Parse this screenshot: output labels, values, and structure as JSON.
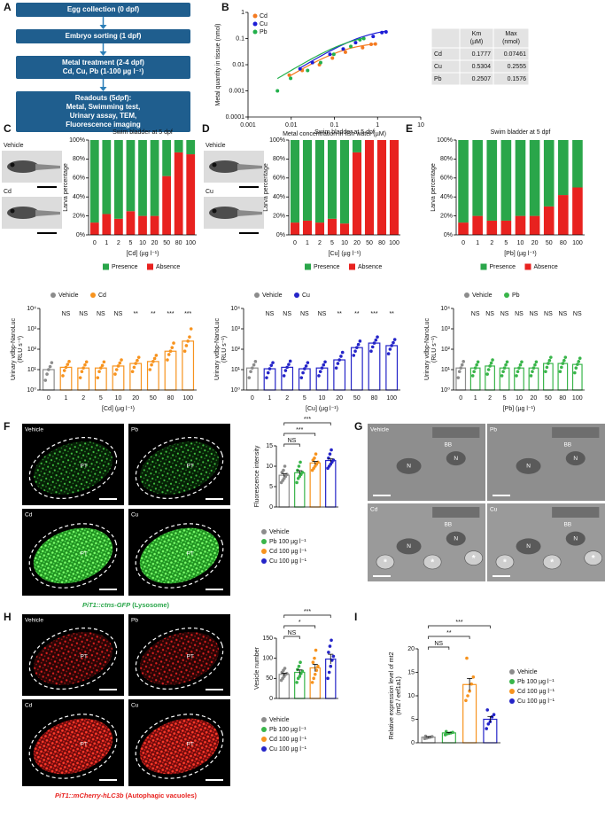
{
  "panels": [
    "A",
    "B",
    "C",
    "D",
    "E",
    "F",
    "G",
    "H",
    "I"
  ],
  "flowchart": {
    "steps": [
      [
        "Egg collection (0 dpf)"
      ],
      [
        "Embryo sorting (1 dpf)"
      ],
      [
        "Metal treatment (2-4 dpf)",
        "Cd, Cu, Pb (1-100 µg l⁻¹)"
      ],
      [
        "Readouts (5dpf):",
        "Metal, Swimming test,",
        "Urinary assay, TEM,",
        "Fluorescence imaging"
      ]
    ]
  },
  "km_table": {
    "columns": [
      [
        "Km",
        "(µM)"
      ],
      [
        "Max",
        "(nmol)"
      ]
    ],
    "rows": [
      {
        "metal": "Cd",
        "km": 0.1777,
        "max": 0.07461
      },
      {
        "metal": "Cu",
        "km": 0.5304,
        "max": 0.2555
      },
      {
        "metal": "Pb",
        "km": 0.2507,
        "max": 0.1576
      }
    ]
  },
  "fish_images": {
    "C": [
      "Vehicle",
      "Cd"
    ],
    "D": [
      "Vehicle",
      "Cu"
    ]
  },
  "fluorescence": {
    "F": {
      "labels": [
        "Vehicle",
        "Pb",
        "Cd",
        "Cu"
      ],
      "region": "PT",
      "caption": [
        "PiT1::ctns-GFP",
        "(Lysosome)"
      ]
    },
    "H": {
      "labels": [
        "Vehicle",
        "Pb",
        "Cd",
        "Cu"
      ],
      "region": "PT",
      "caption": [
        "PiT1::mCherry-hLC3b",
        "(Autophagic vacuoles)"
      ]
    }
  },
  "tem": {
    "labels": [
      "Vehicle",
      "Pb",
      "Cd",
      "Cu"
    ],
    "brush_border": "BB",
    "nucleus": "N",
    "vacuole": "*"
  },
  "chart_data": [
    {
      "type": "scatter",
      "xlabel": "Metal concentration in fish water (µM)",
      "ylabel": "Metal quantity in tissue (nmol)",
      "log_x": true,
      "log_y": true,
      "xlim": [
        0.001,
        10
      ],
      "ylim": [
        0.0001,
        1
      ],
      "xticks": [
        0.001,
        0.01,
        0.1,
        1,
        10
      ],
      "yticks": [
        0.0001,
        0.001,
        0.01,
        0.1,
        1
      ],
      "legend": "upper left",
      "series": [
        {
          "name": "Cd",
          "color": "#f47a20",
          "x": [
            0.009,
            0.018,
            0.045,
            0.09,
            0.18,
            0.45,
            0.71,
            0.89
          ],
          "values": [
            0.004,
            0.006,
            0.01,
            0.018,
            0.03,
            0.045,
            0.06,
            0.062
          ]
        },
        {
          "name": "Cu",
          "color": "#1c1cd6",
          "x": [
            0.016,
            0.031,
            0.079,
            0.16,
            0.31,
            0.79,
            1.26,
            1.57
          ],
          "values": [
            0.007,
            0.012,
            0.025,
            0.04,
            0.07,
            0.12,
            0.17,
            0.18
          ]
        },
        {
          "name": "Pb",
          "color": "#22b04b",
          "x": [
            0.0048,
            0.0097,
            0.024,
            0.048,
            0.097,
            0.24,
            0.39,
            0.48
          ],
          "values": [
            0.001,
            0.003,
            0.006,
            0.012,
            0.025,
            0.05,
            0.09,
            0.1
          ]
        }
      ]
    },
    {
      "type": "stacked_bar",
      "title": "Swim bladder at 5 dpf",
      "ylabel": "Larva percentage",
      "xlabel": "[Cd] (µg l⁻¹)",
      "categories": [
        "0",
        "1",
        "2",
        "5",
        "10",
        "20",
        "50",
        "80",
        "100"
      ],
      "ylim": [
        0,
        100
      ],
      "yticks": [
        {
          "value": 0,
          "label": "0%"
        },
        {
          "value": 20,
          "label": "20%"
        },
        {
          "value": 40,
          "label": "40%"
        },
        {
          "value": 60,
          "label": "60%"
        },
        {
          "value": 80,
          "label": "80%"
        },
        {
          "value": 100,
          "label": "100%"
        }
      ],
      "legend": "bottom",
      "series": [
        {
          "name": "Presence",
          "color": "#2aa64a",
          "values": [
            87,
            78,
            83,
            75,
            80,
            80,
            38,
            13,
            15
          ]
        },
        {
          "name": "Absence",
          "color": "#e8221f",
          "values": [
            13,
            22,
            17,
            25,
            20,
            20,
            62,
            87,
            85
          ]
        }
      ]
    },
    {
      "type": "stacked_bar",
      "title": "Swim bladder at 5 dpf",
      "ylabel": "Larva percentage",
      "xlabel": "[Cu] (µg l⁻¹)",
      "categories": [
        "0",
        "1",
        "2",
        "5",
        "10",
        "20",
        "50",
        "80",
        "100"
      ],
      "ylim": [
        0,
        100
      ],
      "yticks": [
        {
          "value": 0,
          "label": "0%"
        },
        {
          "value": 20,
          "label": "20%"
        },
        {
          "value": 40,
          "label": "40%"
        },
        {
          "value": 60,
          "label": "60%"
        },
        {
          "value": 80,
          "label": "80%"
        },
        {
          "value": 100,
          "label": "100%"
        }
      ],
      "legend": "bottom",
      "series": [
        {
          "name": "Presence",
          "color": "#2aa64a",
          "values": [
            87,
            85,
            87,
            83,
            88,
            13,
            0,
            0,
            0
          ]
        },
        {
          "name": "Absence",
          "color": "#e8221f",
          "values": [
            13,
            15,
            13,
            17,
            12,
            87,
            100,
            100,
            100
          ]
        }
      ]
    },
    {
      "type": "stacked_bar",
      "title": "Swim bladder at 5 dpf",
      "ylabel": "Larva percentage",
      "xlabel": "[Pb] (µg l⁻¹)",
      "categories": [
        "0",
        "1",
        "2",
        "5",
        "10",
        "20",
        "50",
        "80",
        "100"
      ],
      "ylim": [
        0,
        100
      ],
      "yticks": [
        {
          "value": 0,
          "label": "0%"
        },
        {
          "value": 20,
          "label": "20%"
        },
        {
          "value": 40,
          "label": "40%"
        },
        {
          "value": 60,
          "label": "60%"
        },
        {
          "value": 80,
          "label": "80%"
        },
        {
          "value": 100,
          "label": "100%"
        }
      ],
      "legend": "bottom",
      "series": [
        {
          "name": "Presence",
          "color": "#2aa64a",
          "values": [
            87,
            80,
            85,
            85,
            80,
            80,
            70,
            58,
            50
          ]
        },
        {
          "name": "Absence",
          "color": "#e8221f",
          "values": [
            13,
            20,
            15,
            15,
            20,
            20,
            30,
            42,
            50
          ]
        }
      ]
    },
    {
      "type": "dot_bar",
      "ylabel": [
        "Urinary vdbp-NanoLuc",
        "(RLU s⁻¹)"
      ],
      "xlabel": "[Cd] (µg l⁻¹)",
      "log_y": true,
      "ylim": [
        1,
        10000
      ],
      "yticks": [
        {
          "value": 1,
          "label": "10⁰"
        },
        {
          "value": 10,
          "label": "10¹"
        },
        {
          "value": 100,
          "label": "10²"
        },
        {
          "value": 1000,
          "label": "10³"
        },
        {
          "value": 10000,
          "label": "10⁴"
        }
      ],
      "categories": [
        "0",
        "1",
        "2",
        "5",
        "10",
        "20",
        "50",
        "80",
        "100"
      ],
      "values": [
        10,
        13,
        12,
        12,
        15,
        20,
        25,
        80,
        250
      ],
      "points": [
        [
          3,
          6,
          10,
          14,
          22
        ],
        [
          5,
          9,
          13,
          18,
          25
        ],
        [
          4,
          8,
          12,
          17,
          24
        ],
        [
          4,
          8,
          12,
          16,
          24
        ],
        [
          6,
          10,
          15,
          21,
          30
        ],
        [
          8,
          13,
          20,
          28,
          40
        ],
        [
          10,
          17,
          25,
          35,
          50
        ],
        [
          30,
          55,
          80,
          120,
          200
        ],
        [
          80,
          150,
          250,
          400,
          1000
        ]
      ],
      "significance": [
        null,
        "NS",
        "NS",
        "NS",
        "NS",
        "**",
        "**",
        "***",
        "***"
      ],
      "legend": [
        {
          "name": "Vehicle",
          "color": "#8c8c8c"
        },
        {
          "name": "Cd",
          "color": "#f7931e"
        }
      ]
    },
    {
      "type": "dot_bar",
      "ylabel": [
        "Urinary vdbp-NanoLuc",
        "(RLU s⁻¹)"
      ],
      "xlabel": "[Cu] (µg l⁻¹)",
      "log_y": true,
      "ylim": [
        1,
        10000
      ],
      "yticks": [
        {
          "value": 1,
          "label": "10⁰"
        },
        {
          "value": 10,
          "label": "10¹"
        },
        {
          "value": 100,
          "label": "10²"
        },
        {
          "value": 1000,
          "label": "10³"
        },
        {
          "value": 10000,
          "label": "10⁴"
        }
      ],
      "categories": [
        "0",
        "1",
        "2",
        "5",
        "10",
        "20",
        "50",
        "80",
        "100"
      ],
      "values": [
        12,
        11,
        13,
        11,
        12,
        30,
        120,
        200,
        150
      ],
      "points": [
        [
          4,
          8,
          12,
          17,
          25
        ],
        [
          4,
          7,
          11,
          16,
          22
        ],
        [
          5,
          9,
          13,
          18,
          26
        ],
        [
          4,
          7,
          11,
          15,
          22
        ],
        [
          5,
          8,
          12,
          17,
          24
        ],
        [
          12,
          20,
          30,
          45,
          70
        ],
        [
          50,
          80,
          120,
          170,
          250
        ],
        [
          80,
          130,
          200,
          280,
          400
        ],
        [
          60,
          100,
          150,
          210,
          300
        ]
      ],
      "significance": [
        null,
        "NS",
        "NS",
        "NS",
        "NS",
        "**",
        "**",
        "***",
        "**"
      ],
      "legend": [
        {
          "name": "Vehicle",
          "color": "#8c8c8c"
        },
        {
          "name": "Cu",
          "color": "#2424c8"
        }
      ]
    },
    {
      "type": "dot_bar",
      "ylabel": [
        "Urinary vdbp-NanoLuc",
        "(RLU s⁻¹)"
      ],
      "xlabel": "[Pb] (µg l⁻¹)",
      "log_y": true,
      "ylim": [
        1,
        10000
      ],
      "yticks": [
        {
          "value": 1,
          "label": "10⁰"
        },
        {
          "value": 10,
          "label": "10¹"
        },
        {
          "value": 100,
          "label": "10²"
        },
        {
          "value": 1000,
          "label": "10³"
        },
        {
          "value": 10000,
          "label": "10⁴"
        }
      ],
      "categories": [
        "0",
        "1",
        "2",
        "5",
        "10",
        "20",
        "50",
        "80",
        "100"
      ],
      "values": [
        12,
        12,
        15,
        12,
        12,
        12,
        20,
        20,
        18
      ],
      "points": [
        [
          4,
          8,
          12,
          17,
          25
        ],
        [
          5,
          8,
          12,
          17,
          24
        ],
        [
          6,
          10,
          15,
          21,
          30
        ],
        [
          5,
          8,
          12,
          17,
          24
        ],
        [
          5,
          8,
          12,
          17,
          24
        ],
        [
          5,
          8,
          12,
          17,
          24
        ],
        [
          8,
          13,
          20,
          28,
          40
        ],
        [
          8,
          13,
          20,
          28,
          40
        ],
        [
          7,
          12,
          18,
          25,
          36
        ]
      ],
      "significance": [
        null,
        "NS",
        "NS",
        "NS",
        "NS",
        "NS",
        "NS",
        "NS",
        "NS"
      ],
      "legend": [
        {
          "name": "Vehicle",
          "color": "#8c8c8c"
        },
        {
          "name": "Pb",
          "color": "#39b54a"
        }
      ]
    },
    {
      "type": "dot_bar",
      "ylabel": [
        "Fluorescence intensity"
      ],
      "ylim": [
        0,
        15
      ],
      "yticks": [
        0,
        5,
        10,
        15
      ],
      "significance": [
        null,
        "NS",
        "***",
        "***"
      ],
      "series": [
        {
          "name": "Vehicle",
          "color": "#8c8c8c",
          "mean": 7.8,
          "error": 0.4,
          "points": [
            6,
            6.5,
            7,
            7.5,
            8,
            8.5,
            9,
            10
          ]
        },
        {
          "name": "Pb 100 µg l⁻¹",
          "color": "#39b54a",
          "mean": 8.4,
          "error": 0.5,
          "points": [
            6,
            7,
            7.5,
            8,
            8.5,
            9,
            10,
            11
          ]
        },
        {
          "name": "Cd 100 µg l⁻¹",
          "color": "#f7931e",
          "mean": 10.8,
          "error": 0.4,
          "points": [
            9,
            9.5,
            10,
            10.5,
            11,
            11.5,
            12,
            13
          ]
        },
        {
          "name": "Cu 100 µg l⁻¹",
          "color": "#2424c8",
          "mean": 11.4,
          "error": 0.4,
          "points": [
            9.5,
            10,
            10.5,
            11,
            11.5,
            12,
            13,
            14
          ]
        }
      ]
    },
    {
      "type": "dot_bar",
      "ylabel": [
        "Vesicle number"
      ],
      "ylim": [
        0,
        150
      ],
      "yticks": [
        0,
        50,
        100,
        150
      ],
      "significance": [
        null,
        "NS",
        "*",
        "***"
      ],
      "series": [
        {
          "name": "Vehicle",
          "color": "#8c8c8c",
          "mean": 60,
          "error": 3,
          "points": [
            45,
            50,
            55,
            60,
            62,
            65,
            70,
            75
          ]
        },
        {
          "name": "Pb 100 µg l⁻¹",
          "color": "#39b54a",
          "mean": 65,
          "error": 6,
          "points": [
            40,
            50,
            55,
            62,
            68,
            72,
            80,
            90
          ]
        },
        {
          "name": "Cd 100 µg l⁻¹",
          "color": "#f7931e",
          "mean": 76,
          "error": 9,
          "points": [
            40,
            50,
            60,
            70,
            80,
            90,
            100,
            120
          ]
        },
        {
          "name": "Cu 100 µg l⁻¹",
          "color": "#2424c8",
          "mean": 98,
          "error": 12,
          "points": [
            50,
            65,
            80,
            95,
            105,
            115,
            130,
            145
          ]
        }
      ]
    },
    {
      "type": "dot_bar",
      "ylabel": [
        "Relative expression level of mt2",
        "(mt2 / eef1a1)"
      ],
      "ylim": [
        0,
        20
      ],
      "yticks": [
        0,
        5,
        10,
        15,
        20
      ],
      "significance": [
        null,
        "NS",
        "**",
        "***"
      ],
      "series": [
        {
          "name": "Vehicle",
          "color": "#8c8c8c",
          "mean": 1.2,
          "error": 0.1,
          "points": [
            0.9,
            1.0,
            1.1,
            1.2,
            1.3,
            1.4
          ]
        },
        {
          "name": "Pb 100 µg l⁻¹",
          "color": "#39b54a",
          "mean": 2.1,
          "error": 0.1,
          "points": [
            1.7,
            1.9,
            2.0,
            2.1,
            2.2,
            2.4
          ]
        },
        {
          "name": "Cd 100 µg l⁻¹",
          "color": "#f7931e",
          "mean": 12.4,
          "error": 1.3,
          "points": [
            9,
            10,
            11,
            12.5,
            14,
            18
          ]
        },
        {
          "name": "Cu 100 µg l⁻¹",
          "color": "#2424c8",
          "mean": 5,
          "error": 0.6,
          "points": [
            3,
            4,
            4.5,
            5.5,
            6,
            7
          ]
        }
      ]
    }
  ]
}
